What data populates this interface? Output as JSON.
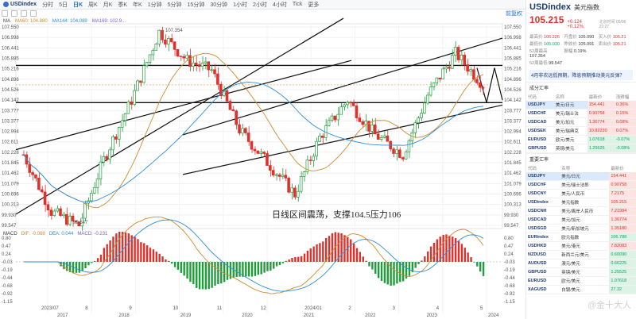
{
  "toolbar": {
    "symbol": "USDindex",
    "timeframes": [
      "分时",
      "5日",
      "日K",
      "周K",
      "月K",
      "季K",
      "年K",
      "1分钟",
      "5分钟",
      "15分钟",
      "30分钟",
      "1小时",
      "2小时",
      "4小时",
      "Tick",
      "更多"
    ],
    "active_timeframe": "周K",
    "right_label": "前复权"
  },
  "indicators": {
    "ma_label": "MA",
    "ma60": "MA60: 104.880",
    "ma144": "MA144: 104.089",
    "ma169": "MA169: 102.9..."
  },
  "annotation": "日线区间震荡，支撑104.5压力106",
  "chart_labels": {
    "high_label": "107.354",
    "low_label": "99.547"
  },
  "y_ticks": [
    "107.550",
    "106.998",
    "106.441",
    "105.885",
    "105.216",
    "104.896",
    "104.526",
    "104.142",
    "103.777",
    "103.377",
    "102.994",
    "102.611",
    "102.228",
    "101.845",
    "101.462",
    "101.079",
    "100.696",
    "100.313",
    "99.930",
    "99.547"
  ],
  "x_ticks_main": [
    "2023/07",
    "8",
    "9",
    "10",
    "11",
    "12",
    "2024/01",
    "2",
    "3",
    "4",
    "5"
  ],
  "x_ticks_years": [
    "2017",
    "2018",
    "2019",
    "2020",
    "2021",
    "2022",
    "2023",
    "2024"
  ],
  "macd": {
    "label": "MACD",
    "dif": "DIF: -0.088",
    "dea": "DEA: 0.044",
    "macd": "MACD: -0.231",
    "y_ticks": [
      "0.80",
      "0.47",
      "0.24",
      "-0.03",
      "-0.19",
      "-0.44",
      "-0.68",
      "-0.92",
      "-1.15"
    ]
  },
  "chart_data": {
    "type": "candlestick",
    "title": "USDindex",
    "ylim": [
      99.547,
      107.55
    ],
    "x_range": [
      "2023/07",
      "2024/05"
    ],
    "ma_lines": [
      {
        "name": "MA60",
        "value_last": 104.88,
        "color": "#d08a2c"
      },
      {
        "name": "MA144",
        "value_last": 104.089,
        "color": "#2a8fd8"
      }
    ],
    "levels": [
      {
        "label": "support",
        "value": 104.5
      },
      {
        "label": "resistance",
        "value": 106
      }
    ],
    "price_points": [
      {
        "x": "2023/07",
        "value": 102.4
      },
      {
        "x": "2023/07",
        "value": 100.1
      },
      {
        "x": "2023/07",
        "value": 99.547
      },
      {
        "x": "8",
        "value": 102.2
      },
      {
        "x": "9",
        "value": 104.6
      },
      {
        "x": "10",
        "value": 107.354
      },
      {
        "x": "10",
        "value": 106.2
      },
      {
        "x": "11",
        "value": 105.8
      },
      {
        "x": "11",
        "value": 103.4
      },
      {
        "x": "12",
        "value": 102.1
      },
      {
        "x": "12",
        "value": 100.8
      },
      {
        "x": "2024/01",
        "value": 103.1
      },
      {
        "x": "2",
        "value": 104.6
      },
      {
        "x": "3",
        "value": 103.2
      },
      {
        "x": "3",
        "value": 102.4
      },
      {
        "x": "4",
        "value": 104.8
      },
      {
        "x": "4",
        "value": 106.5
      },
      {
        "x": "5",
        "value": 105.215
      }
    ]
  },
  "panel": {
    "code": "USDindex",
    "name": "美元指数",
    "price": "105.215",
    "change": "+0.124 +0.12%",
    "time": "北京时间 05/06 22:27",
    "stats": [
      {
        "k": "最高价",
        "v": "105.226",
        "c": "red"
      },
      {
        "k": "开盘价",
        "v": "105.090",
        "c": ""
      },
      {
        "k": "买入价",
        "v": "105.21",
        "c": "red"
      },
      {
        "k": "最低价",
        "v": "105.030",
        "c": "green"
      },
      {
        "k": "昨收价",
        "v": "105.091",
        "c": ""
      },
      {
        "k": "卖出价",
        "v": "105.21",
        "c": "red"
      },
      {
        "k": "52周最高",
        "v": "107.354",
        "c": ""
      },
      {
        "k": "振幅",
        "v": "0.19%",
        "c": ""
      },
      {
        "k": "",
        "v": "",
        "c": ""
      },
      {
        "k": "52周最低",
        "v": "99.547",
        "c": ""
      },
      {
        "k": "",
        "v": "",
        "c": ""
      },
      {
        "k": "",
        "v": "",
        "c": ""
      }
    ],
    "news": "4月非农远低预期，降息预期推动美元反弹？",
    "components_title": "成分汇率",
    "headers": [
      "代码",
      "名称",
      "最新价",
      "涨跌幅"
    ],
    "components": [
      {
        "code": "USDJPY",
        "name": "美元/日元",
        "price": "154.441",
        "chg": "0.36%",
        "dir": "pos",
        "sel": true
      },
      {
        "code": "USDCHF",
        "name": "美元/瑞士法",
        "price": "0.90758",
        "chg": "0.15%",
        "dir": "pos",
        "sel": false
      },
      {
        "code": "USDCAD",
        "name": "美元/加元",
        "price": "1.36774",
        "chg": "0.08%",
        "dir": "pos",
        "sel": false
      },
      {
        "code": "USDSEK",
        "name": "美元/瑞典克",
        "price": "10.82230",
        "chg": "0.07%",
        "dir": "pos",
        "sel": false
      },
      {
        "code": "EURUSD",
        "name": "欧元/美元",
        "price": "1.07618",
        "chg": "-0.07%",
        "dir": "neg",
        "sel": false
      },
      {
        "code": "GBPUSD",
        "name": "英镑/美元",
        "price": "1.25525",
        "chg": "-0.08%",
        "dir": "neg",
        "sel": false
      }
    ],
    "major_title": "重要汇率",
    "major": [
      {
        "code": "USDJPY",
        "name": "美元/日元",
        "price": "154.441",
        "dir": "pos",
        "sel": true
      },
      {
        "code": "USDCHF",
        "name": "美元/瑞士法郎",
        "price": "0.90758",
        "dir": "pos",
        "sel": false
      },
      {
        "code": "USDCNY",
        "name": "美元/人民币",
        "price": "7.2175",
        "dir": "pos",
        "sel": false
      },
      {
        "code": "USDindex",
        "name": "美元指数",
        "price": "105.215",
        "dir": "pos",
        "sel": false
      },
      {
        "code": "USDCNH",
        "name": "美元/离岸人民币",
        "price": "7.21984",
        "dir": "pos",
        "sel": false
      },
      {
        "code": "USDCAD",
        "name": "美元/加元",
        "price": "1.36774",
        "dir": "pos",
        "sel": false
      },
      {
        "code": "USDSGD",
        "name": "美元/新加坡元",
        "price": "1.35180",
        "dir": "pos",
        "sel": false
      },
      {
        "code": "EURindex",
        "name": "欧元指数",
        "price": "106.788",
        "dir": "neg",
        "sel": false
      },
      {
        "code": "USDHKD",
        "name": "美元/港元",
        "price": "7.82083",
        "dir": "pos",
        "sel": false
      },
      {
        "code": "NZDUSD",
        "name": "新西兰元/美元",
        "price": "0.60090",
        "dir": "neg",
        "sel": false
      },
      {
        "code": "AUDUSD",
        "name": "澳元/美元",
        "price": "0.66225",
        "dir": "neg",
        "sel": false
      },
      {
        "code": "GBPUSD",
        "name": "英镑/美元",
        "price": "1.25525",
        "dir": "neg",
        "sel": false
      },
      {
        "code": "EURUSD",
        "name": "欧元/美元",
        "price": "1.07618",
        "dir": "neg",
        "sel": false
      },
      {
        "code": "XAGUSD",
        "name": "白银/美元",
        "price": "27.32",
        "dir": "neg",
        "sel": false
      }
    ],
    "watermark": "@金十大人"
  }
}
